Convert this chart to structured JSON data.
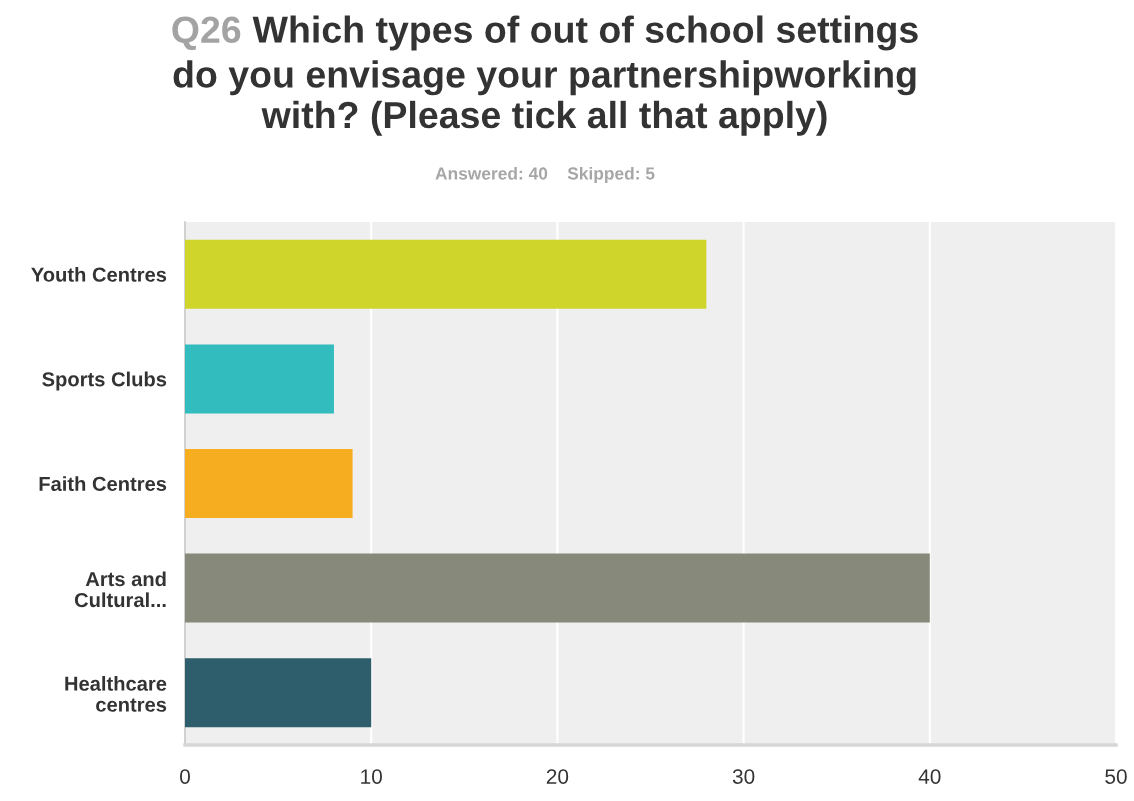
{
  "chart_data": {
    "type": "bar",
    "orientation": "horizontal",
    "title": "Q26 Which types of out of school settings\ndo you envisage your partnershipworking\nwith? (Please tick all that apply)",
    "subtitle": "Answered: 40    Skipped: 5",
    "categories": [
      "Youth Centres",
      "Sports Clubs",
      "Faith Centres",
      "Arts and\nCultural...",
      "Healthcare\ncentres"
    ],
    "values": [
      28,
      8,
      9,
      40,
      10
    ],
    "colors": [
      "#cfd52b",
      "#33bcbd",
      "#f6ae20",
      "#878a7a",
      "#2e5e6b"
    ],
    "xlim": [
      0,
      50
    ],
    "xticks": [
      0,
      10,
      20,
      30,
      40,
      50
    ],
    "grid": "x"
  }
}
